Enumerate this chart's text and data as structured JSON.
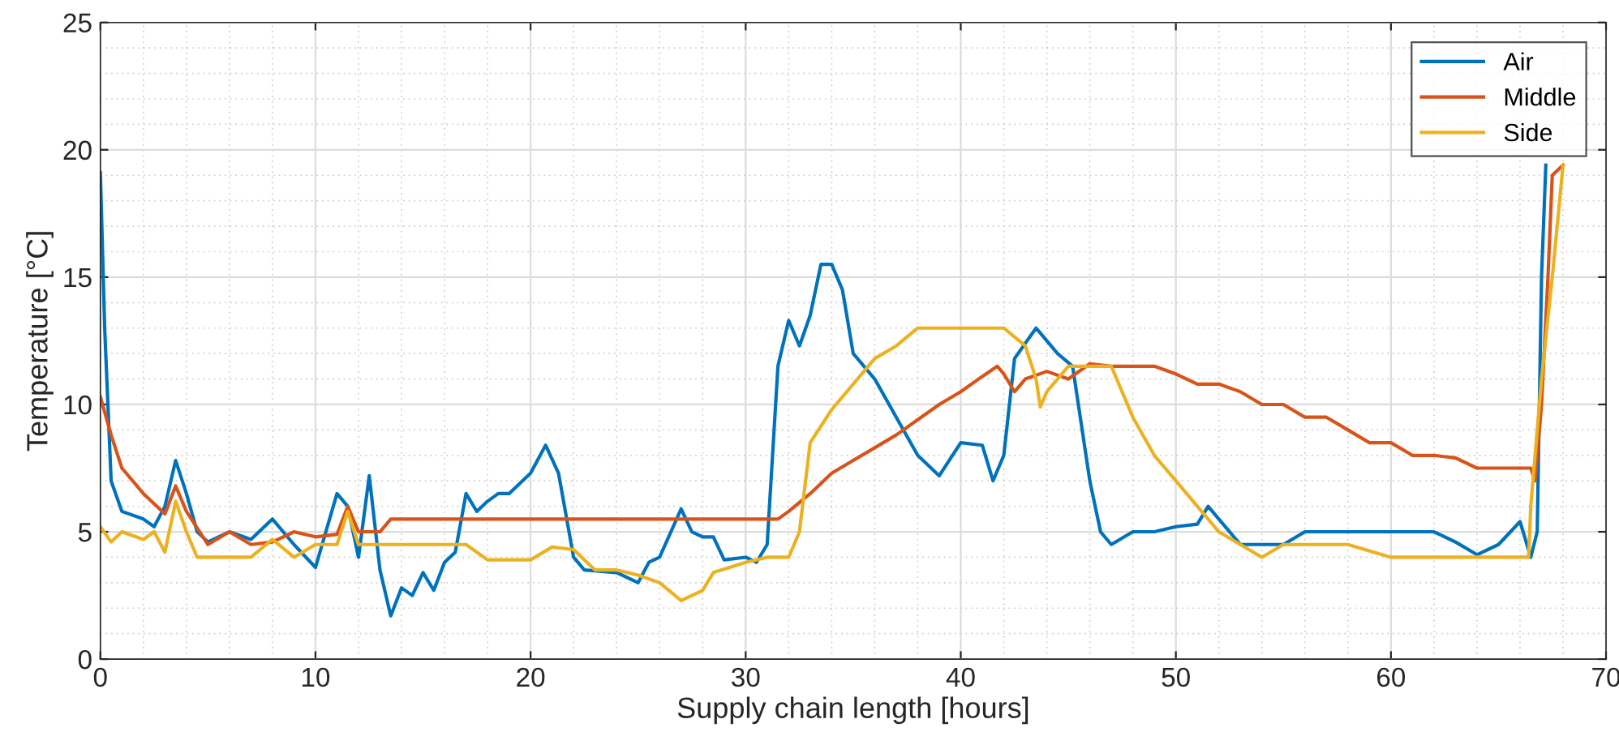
{
  "chart_data": {
    "type": "line",
    "xlabel": "Supply chain length [hours]",
    "ylabel": "Temperature [°C]",
    "xlim": [
      0,
      70
    ],
    "xticks": [
      0,
      10,
      20,
      30,
      40,
      50,
      60,
      70
    ],
    "ylim": [
      0,
      25
    ],
    "yticks": [
      0,
      5,
      10,
      15,
      20,
      25
    ],
    "grid": true,
    "legend": "top right",
    "marker": "none",
    "line_style": "solid",
    "series": [
      {
        "name": "Air",
        "color": "#0072bd",
        "x": [
          0,
          0.2,
          0.5,
          1,
          2,
          2.5,
          3,
          3.5,
          4,
          4.5,
          5,
          6,
          7,
          8,
          9,
          10,
          11,
          11.5,
          12,
          12.5,
          13,
          13.5,
          14,
          14.5,
          15,
          15.5,
          16,
          16.5,
          17,
          17.5,
          18,
          18.5,
          19,
          20,
          20.7,
          21.3,
          22,
          22.5,
          24,
          25,
          25.5,
          26,
          27,
          27.5,
          28,
          28.5,
          29,
          30,
          30.5,
          31,
          31.5,
          32,
          32.5,
          33,
          33.5,
          34,
          34.5,
          35,
          36,
          37,
          38,
          39,
          40,
          41,
          41.5,
          42,
          42.5,
          43.5,
          44.5,
          45.2,
          46,
          46.5,
          47,
          48,
          49,
          50,
          51,
          51.5,
          52,
          53,
          55,
          56,
          62,
          63,
          64,
          65,
          66,
          66.5,
          66.8,
          67,
          67.2
        ],
        "values": [
          19.1,
          13,
          7,
          5.8,
          5.5,
          5.2,
          6,
          7.8,
          6.5,
          5,
          4.6,
          5,
          4.7,
          5.5,
          4.5,
          3.6,
          6.5,
          6,
          4,
          7.2,
          3.5,
          1.7,
          2.8,
          2.5,
          3.4,
          2.7,
          3.8,
          4.2,
          6.5,
          5.8,
          6.2,
          6.5,
          6.5,
          7.3,
          8.4,
          7.3,
          4,
          3.5,
          3.4,
          3,
          3.8,
          4,
          5.9,
          5,
          4.8,
          4.8,
          3.9,
          4,
          3.8,
          4.5,
          11.5,
          13.3,
          12.3,
          13.5,
          15.5,
          15.5,
          14.5,
          12,
          11,
          9.5,
          8,
          7.2,
          8.5,
          8.4,
          7,
          8,
          11.8,
          13,
          12,
          11.5,
          7,
          5,
          4.5,
          5,
          5,
          5.2,
          5.3,
          6,
          5.5,
          4.5,
          4.5,
          5,
          5,
          4.6,
          4.1,
          4.5,
          5.4,
          4,
          5,
          15,
          19.4
        ]
      },
      {
        "name": "Middle",
        "color": "#d95319",
        "x": [
          0,
          0.5,
          1,
          2,
          3,
          3.5,
          4,
          5,
          6,
          7,
          8,
          9,
          10,
          11,
          11.5,
          12,
          13,
          13.5,
          30,
          31.5,
          32,
          33,
          34,
          35,
          36,
          37,
          38,
          39,
          40,
          41,
          41.7,
          42,
          42.5,
          43,
          44,
          45,
          46,
          47,
          49,
          50,
          51,
          52,
          53,
          54,
          55,
          56,
          57,
          58,
          59,
          60,
          61,
          62,
          63,
          64,
          65,
          66.5,
          66.7,
          67,
          67.3,
          67.5,
          68
        ],
        "values": [
          10.3,
          8.8,
          7.5,
          6.5,
          5.7,
          6.8,
          5.8,
          4.5,
          5,
          4.5,
          4.6,
          5,
          4.8,
          4.9,
          6,
          5,
          5,
          5.5,
          5.5,
          5.5,
          5.8,
          6.5,
          7.3,
          7.8,
          8.3,
          8.8,
          9.4,
          10,
          10.5,
          11.1,
          11.5,
          11.2,
          10.5,
          11,
          11.3,
          11,
          11.6,
          11.5,
          11.5,
          11.2,
          10.8,
          10.8,
          10.5,
          10,
          10,
          9.5,
          9.5,
          9,
          8.5,
          8.5,
          8,
          8,
          7.9,
          7.5,
          7.5,
          7.5,
          7,
          10,
          15,
          19,
          19.4
        ]
      },
      {
        "name": "Side",
        "color": "#edb120",
        "x": [
          0,
          0.5,
          1,
          2,
          2.5,
          3,
          3.5,
          4,
          4.5,
          7,
          8,
          9,
          10,
          11,
          11.5,
          12,
          17,
          18,
          20,
          21,
          22,
          23,
          24,
          25,
          26,
          27,
          28,
          28.5,
          30,
          31,
          32,
          32.5,
          33,
          34,
          35,
          36,
          37,
          38,
          42,
          43,
          43.5,
          43.7,
          44,
          45,
          47,
          48,
          49,
          50,
          51,
          52,
          53,
          54,
          55,
          58,
          60,
          66.4,
          66.5,
          67,
          67.5,
          68
        ],
        "values": [
          5.2,
          4.6,
          5,
          4.7,
          5,
          4.2,
          6.2,
          5,
          4,
          4,
          4.7,
          4,
          4.5,
          4.5,
          5.8,
          4.5,
          4.5,
          3.9,
          3.9,
          4.4,
          4.3,
          3.5,
          3.5,
          3.3,
          3,
          2.3,
          2.7,
          3.4,
          3.8,
          4,
          4,
          5,
          8.5,
          9.8,
          10.8,
          11.8,
          12.3,
          13,
          13,
          12.3,
          11,
          9.9,
          10.5,
          11.5,
          11.5,
          9.5,
          8,
          7,
          6,
          5,
          4.5,
          4,
          4.5,
          4.5,
          4,
          4,
          6,
          11,
          15,
          19.4
        ]
      }
    ]
  }
}
